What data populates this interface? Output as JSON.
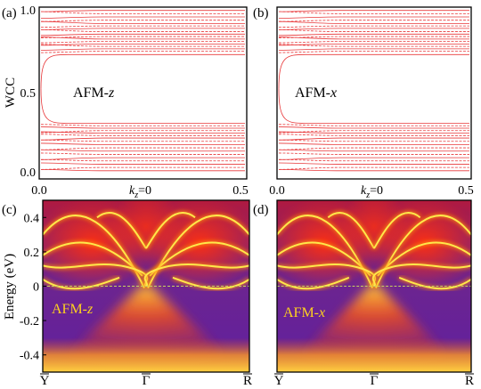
{
  "panels": [
    {
      "label": "(a)",
      "annotation": "AFM-",
      "annotation_axis": "z"
    },
    {
      "label": "(b)",
      "annotation": "AFM-",
      "annotation_axis": "x"
    },
    {
      "label": "(c)",
      "annotation": "AFM-",
      "annotation_axis": "z"
    },
    {
      "label": "(d)",
      "annotation": "AFM-",
      "annotation_axis": "x"
    }
  ],
  "colors": {
    "wcc_line": "#e8383a",
    "fermi_line": "#c8d060",
    "band": "#ffe84a",
    "annotation_text": "#ffd21e"
  },
  "chart_data": [
    {
      "type": "line",
      "panel": "(a)",
      "ylabel": "WCC",
      "xlabel_symbol": "k",
      "xlabel_sub": "z",
      "xlabel_rest": "=0",
      "xlim": [
        0.0,
        0.5
      ],
      "ylim": [
        -0.05,
        1.0
      ],
      "xticks": [
        "0.0",
        "0.5"
      ],
      "yticks": [
        "0.0",
        "0.5",
        "1.0"
      ],
      "ytick_values": [
        0.0,
        0.5,
        1.0
      ],
      "gap": [
        0.3,
        0.7
      ],
      "series": {
        "upper_levels": [
          0.71,
          0.73,
          0.745,
          0.76,
          0.775,
          0.79,
          0.805,
          0.82,
          0.835,
          0.85,
          0.87,
          0.885,
          0.9,
          0.92,
          0.94,
          0.96,
          0.98
        ],
        "lower_levels": [
          0.0,
          0.02,
          0.04,
          0.06,
          0.08,
          0.1,
          0.12,
          0.14,
          0.16,
          0.18,
          0.2,
          0.215,
          0.23,
          0.245,
          0.26,
          0.275,
          0.29
        ]
      }
    },
    {
      "type": "line",
      "panel": "(b)",
      "xlabel_symbol": "k",
      "xlabel_sub": "z",
      "xlabel_rest": "=0",
      "xlim": [
        0.0,
        0.5
      ],
      "ylim": [
        -0.05,
        1.0
      ],
      "xticks": [
        "0.0",
        "0.5"
      ],
      "gap": [
        0.3,
        0.7
      ],
      "series": {
        "upper_levels": [
          0.71,
          0.73,
          0.745,
          0.76,
          0.775,
          0.79,
          0.805,
          0.82,
          0.835,
          0.85,
          0.87,
          0.885,
          0.9,
          0.92,
          0.94,
          0.96,
          0.98
        ],
        "lower_levels": [
          0.0,
          0.02,
          0.04,
          0.06,
          0.08,
          0.1,
          0.12,
          0.14,
          0.16,
          0.18,
          0.2,
          0.215,
          0.23,
          0.245,
          0.26,
          0.275,
          0.29
        ]
      }
    },
    {
      "type": "heatmap",
      "panel": "(c)",
      "ylabel": "Energy (eV)",
      "ylim": [
        -0.5,
        0.5
      ],
      "yticks": [
        "0.4",
        "0.2",
        "0",
        "-0.2",
        "-0.4"
      ],
      "ytick_values": [
        0.4,
        0.2,
        0.0,
        -0.2,
        -0.4
      ],
      "xticks": [
        "Y",
        "Γ",
        "R"
      ],
      "fermi_level": 0.0
    },
    {
      "type": "heatmap",
      "panel": "(d)",
      "ylim": [
        -0.5,
        0.5
      ],
      "yticks": [
        "0.4",
        "0.2",
        "0",
        "-0.2",
        "-0.4"
      ],
      "ytick_values": [
        0.4,
        0.2,
        0.0,
        -0.2,
        -0.4
      ],
      "xticks": [
        "Y",
        "Γ",
        "R"
      ],
      "fermi_level": 0.0
    }
  ]
}
